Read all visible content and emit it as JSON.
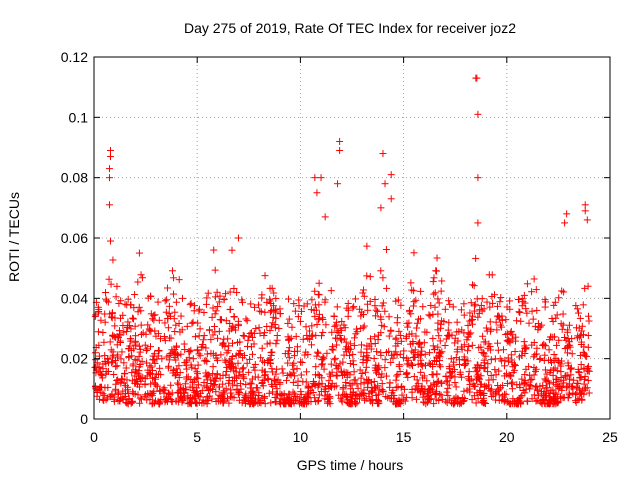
{
  "chart_data": {
    "type": "scatter",
    "title": "Day 275 of 2019, Rate Of TEC Index for receiver joz2",
    "xlabel": "GPS time / hours",
    "ylabel": "ROTI / TECUs",
    "xlim": [
      0,
      25
    ],
    "ylim": [
      0,
      0.12
    ],
    "xticks": [
      0,
      5,
      10,
      15,
      20,
      25
    ],
    "xtick_labels": [
      "0",
      "5",
      "10",
      "15",
      "20",
      "25"
    ],
    "yticks": [
      0,
      0.02,
      0.04,
      0.06,
      0.08,
      0.1,
      0.12
    ],
    "ytick_labels": [
      "0",
      "0.02",
      "0.04",
      "0.06",
      "0.08",
      "0.1",
      "0.12"
    ],
    "grid": true,
    "marker": "+",
    "series": [
      {
        "name": "ROTI",
        "color": "#ff0000",
        "x_range": [
          0,
          24
        ],
        "typical_range": [
          0.005,
          0.04
        ],
        "notable_points": [
          {
            "x": 0.8,
            "y": 0.089
          },
          {
            "x": 0.8,
            "y": 0.087
          },
          {
            "x": 0.75,
            "y": 0.083
          },
          {
            "x": 0.75,
            "y": 0.08
          },
          {
            "x": 0.75,
            "y": 0.071
          },
          {
            "x": 0.8,
            "y": 0.059
          },
          {
            "x": 2.2,
            "y": 0.055
          },
          {
            "x": 5.8,
            "y": 0.056
          },
          {
            "x": 7.0,
            "y": 0.06
          },
          {
            "x": 10.7,
            "y": 0.08
          },
          {
            "x": 11.0,
            "y": 0.08
          },
          {
            "x": 10.8,
            "y": 0.075
          },
          {
            "x": 11.2,
            "y": 0.067
          },
          {
            "x": 11.9,
            "y": 0.092
          },
          {
            "x": 11.9,
            "y": 0.089
          },
          {
            "x": 11.8,
            "y": 0.078
          },
          {
            "x": 14.0,
            "y": 0.088
          },
          {
            "x": 14.1,
            "y": 0.078
          },
          {
            "x": 14.4,
            "y": 0.081
          },
          {
            "x": 14.4,
            "y": 0.073
          },
          {
            "x": 13.9,
            "y": 0.07
          },
          {
            "x": 18.5,
            "y": 0.113
          },
          {
            "x": 18.55,
            "y": 0.113
          },
          {
            "x": 18.6,
            "y": 0.101
          },
          {
            "x": 18.6,
            "y": 0.08
          },
          {
            "x": 18.6,
            "y": 0.065
          },
          {
            "x": 22.9,
            "y": 0.068
          },
          {
            "x": 22.8,
            "y": 0.065
          },
          {
            "x": 23.8,
            "y": 0.071
          },
          {
            "x": 23.8,
            "y": 0.069
          },
          {
            "x": 23.9,
            "y": 0.066
          }
        ]
      }
    ]
  }
}
